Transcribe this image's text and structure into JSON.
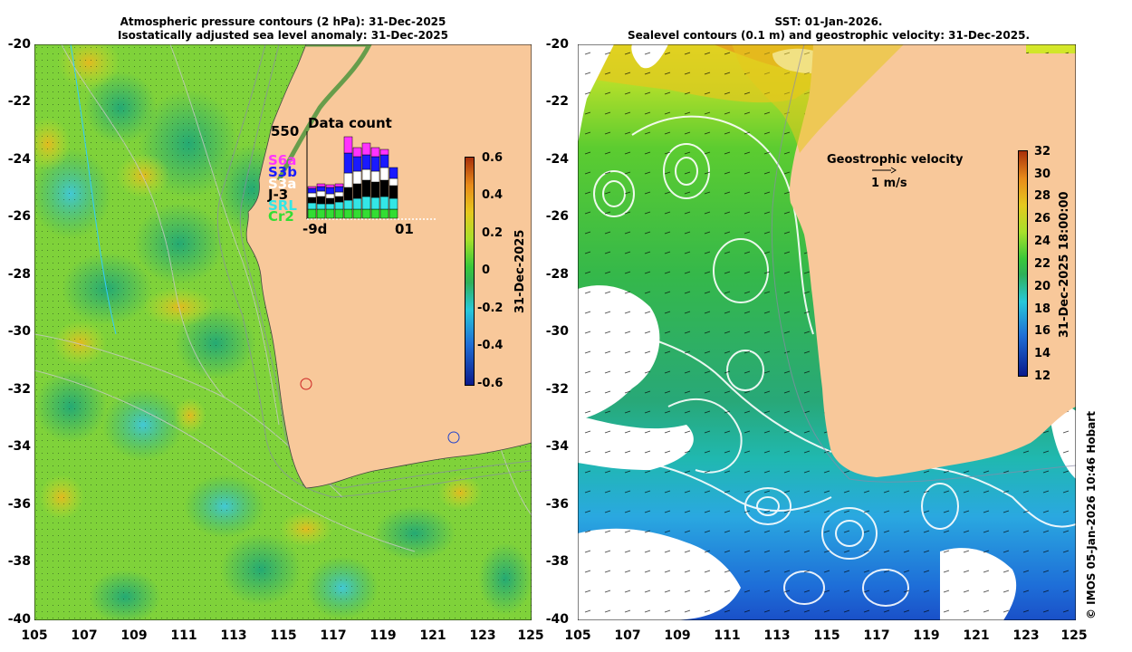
{
  "left_panel": {
    "title_line1": "Atmospheric pressure contours (2 hPa): 31-Dec-2025",
    "title_line2": "Isostatically adjusted sea level anomaly: 31-Dec-2025",
    "y_ticks": [
      "-20",
      "-22",
      "-24",
      "-26",
      "-28",
      "-30",
      "-32",
      "-34",
      "-36",
      "-38",
      "-40"
    ],
    "x_ticks": [
      "105",
      "107",
      "109",
      "111",
      "113",
      "115",
      "117",
      "119",
      "121",
      "123",
      "125"
    ],
    "colorbar": {
      "ticks": [
        "0.6",
        "0.4",
        "0.2",
        "0",
        "-0.2",
        "-0.4",
        "-0.6"
      ],
      "label": "31-Dec-2025",
      "colors": [
        "#0a1a8c",
        "#1f6fd6",
        "#28c8d8",
        "#2fb05a",
        "#39c83a",
        "#a8e02a",
        "#e6c81e",
        "#e88a1a",
        "#a8300a"
      ]
    },
    "data_count": {
      "title": "Data count",
      "ymax_label": "550",
      "x_start_label": "-9d",
      "x_end_label": "01",
      "missions": [
        {
          "name": "S6a",
          "color": "#ff33ff"
        },
        {
          "name": "S3b",
          "color": "#1a1aff"
        },
        {
          "name": "S3a",
          "color": "#ffffff"
        },
        {
          "name": "J-3",
          "color": "#000000"
        },
        {
          "name": "SRL",
          "color": "#33e6e6"
        },
        {
          "name": "Cr2",
          "color": "#33dd33"
        }
      ]
    }
  },
  "right_panel": {
    "title_line1": "SST: 01-Jan-2026.",
    "title_line2": "Sealevel contours (0.1 m) and geostrophic velocity: 31-Dec-2025.",
    "y_ticks": [
      "-20",
      "-22",
      "-24",
      "-26",
      "-28",
      "-30",
      "-32",
      "-34",
      "-36",
      "-38",
      "-40"
    ],
    "x_ticks": [
      "105",
      "107",
      "109",
      "111",
      "113",
      "115",
      "117",
      "119",
      "121",
      "123",
      "125"
    ],
    "velocity_legend_title": "Geostrophic velocity",
    "velocity_legend_scale": "1 m/s",
    "colorbar": {
      "ticks": [
        "32",
        "30",
        "28",
        "26",
        "24",
        "22",
        "20",
        "18",
        "16",
        "14",
        "12"
      ],
      "label": "31-Dec-2025 18:00:00",
      "colors": [
        "#0a1a8c",
        "#1f6fd6",
        "#28c8d8",
        "#2fb05a",
        "#39c83a",
        "#a8e02a",
        "#e6c81e",
        "#e88a1a",
        "#a8300a"
      ]
    }
  },
  "credit": "© IMOS 05-Jan-2026 10:46 Hobart"
}
